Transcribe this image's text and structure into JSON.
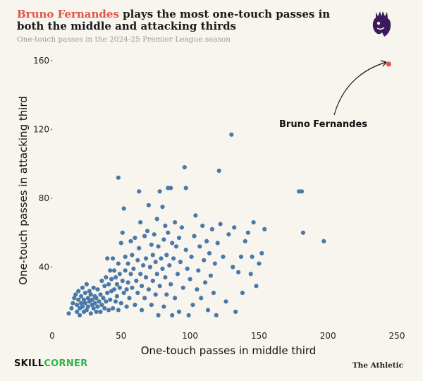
{
  "header": {
    "title_highlight": "Bruno Fernandes",
    "title_rest": " plays the most one-touch passes in both the middle and attacking thirds",
    "subtitle": "One-touch passes in the 2024-25 Premier League season"
  },
  "logo": {
    "icon": "premier-league-lion-icon",
    "color": "#3d195b"
  },
  "footer": {
    "brand_left_part1": "SKILL",
    "brand_left_part2": "CORNER",
    "brand_right": "The Athletic"
  },
  "colors": {
    "point": "#4a78a8",
    "highlight": "#e05548",
    "accent_title": "#e05548",
    "brand_green": "#2fb34a"
  },
  "chart_data": {
    "type": "scatter",
    "xlabel": "One-touch passes in middle third",
    "ylabel": "One-touch passes in attacking third",
    "xlim": [
      0,
      250
    ],
    "ylim": [
      0,
      160
    ],
    "xticks": [
      0,
      50,
      100,
      150,
      200,
      250
    ],
    "yticks": [
      40,
      80,
      120,
      160
    ],
    "grid": false,
    "highlight": {
      "name": "Bruno Fernandes",
      "x": 244,
      "y": 158
    },
    "annotation": "Bruno Fernandes",
    "points": [
      [
        12,
        13
      ],
      [
        14,
        16
      ],
      [
        15,
        19
      ],
      [
        16,
        22
      ],
      [
        17,
        24
      ],
      [
        18,
        14
      ],
      [
        18,
        18
      ],
      [
        19,
        21
      ],
      [
        19,
        26
      ],
      [
        20,
        12
      ],
      [
        20,
        16
      ],
      [
        21,
        19
      ],
      [
        21,
        23
      ],
      [
        22,
        17
      ],
      [
        22,
        28
      ],
      [
        23,
        14
      ],
      [
        23,
        21
      ],
      [
        24,
        25
      ],
      [
        24,
        19
      ],
      [
        25,
        30
      ],
      [
        25,
        15
      ],
      [
        26,
        22
      ],
      [
        26,
        17
      ],
      [
        27,
        20
      ],
      [
        27,
        26
      ],
      [
        28,
        13
      ],
      [
        28,
        24
      ],
      [
        29,
        18
      ],
      [
        29,
        21
      ],
      [
        30,
        16
      ],
      [
        30,
        28
      ],
      [
        31,
        23
      ],
      [
        31,
        19
      ],
      [
        32,
        14
      ],
      [
        32,
        22
      ],
      [
        33,
        27
      ],
      [
        33,
        17
      ],
      [
        34,
        20
      ],
      [
        35,
        24
      ],
      [
        35,
        14
      ],
      [
        36,
        32
      ],
      [
        36,
        18
      ],
      [
        37,
        22
      ],
      [
        38,
        29
      ],
      [
        38,
        16
      ],
      [
        39,
        34
      ],
      [
        39,
        20
      ],
      [
        40,
        25
      ],
      [
        40,
        45
      ],
      [
        41,
        15
      ],
      [
        41,
        30
      ],
      [
        42,
        38
      ],
      [
        42,
        21
      ],
      [
        43,
        33
      ],
      [
        43,
        26
      ],
      [
        44,
        16
      ],
      [
        44,
        45
      ],
      [
        45,
        38
      ],
      [
        45,
        27
      ],
      [
        46,
        20
      ],
      [
        46,
        34
      ],
      [
        47,
        30
      ],
      [
        47,
        23
      ],
      [
        48,
        42
      ],
      [
        48,
        15
      ],
      [
        48,
        92
      ],
      [
        49,
        36
      ],
      [
        49,
        28
      ],
      [
        50,
        19
      ],
      [
        50,
        54
      ],
      [
        51,
        60
      ],
      [
        51,
        32
      ],
      [
        52,
        74
      ],
      [
        52,
        25
      ],
      [
        53,
        46
      ],
      [
        53,
        38
      ],
      [
        54,
        27
      ],
      [
        54,
        17
      ],
      [
        55,
        42
      ],
      [
        55,
        31
      ],
      [
        56,
        22
      ],
      [
        57,
        55
      ],
      [
        57,
        36
      ],
      [
        58,
        47
      ],
      [
        58,
        28
      ],
      [
        59,
        39
      ],
      [
        60,
        18
      ],
      [
        60,
        57
      ],
      [
        61,
        32
      ],
      [
        62,
        44
      ],
      [
        62,
        25
      ],
      [
        63,
        84
      ],
      [
        63,
        51
      ],
      [
        64,
        36
      ],
      [
        64,
        66
      ],
      [
        65,
        15
      ],
      [
        65,
        29
      ],
      [
        66,
        41
      ],
      [
        67,
        58
      ],
      [
        67,
        22
      ],
      [
        68,
        45
      ],
      [
        68,
        34
      ],
      [
        69,
        61
      ],
      [
        70,
        27
      ],
      [
        70,
        76
      ],
      [
        71,
        40
      ],
      [
        72,
        53
      ],
      [
        72,
        18
      ],
      [
        73,
        32
      ],
      [
        73,
        47
      ],
      [
        74,
        59
      ],
      [
        75,
        24
      ],
      [
        75,
        43
      ],
      [
        76,
        68
      ],
      [
        76,
        36
      ],
      [
        77,
        12
      ],
      [
        77,
        52
      ],
      [
        78,
        29
      ],
      [
        78,
        84
      ],
      [
        79,
        45
      ],
      [
        80,
        39
      ],
      [
        80,
        75
      ],
      [
        81,
        17
      ],
      [
        81,
        56
      ],
      [
        82,
        34
      ],
      [
        82,
        64
      ],
      [
        83,
        47
      ],
      [
        83,
        24
      ],
      [
        84,
        86
      ],
      [
        84,
        60
      ],
      [
        85,
        41
      ],
      [
        86,
        30
      ],
      [
        86,
        86
      ],
      [
        87,
        54
      ],
      [
        87,
        12
      ],
      [
        88,
        45
      ],
      [
        89,
        66
      ],
      [
        89,
        22
      ],
      [
        90,
        52
      ],
      [
        91,
        36
      ],
      [
        92,
        57
      ],
      [
        92,
        14
      ],
      [
        93,
        43
      ],
      [
        94,
        63
      ],
      [
        95,
        28
      ],
      [
        96,
        98
      ],
      [
        97,
        86
      ],
      [
        97,
        50
      ],
      [
        98,
        39
      ],
      [
        99,
        12
      ],
      [
        100,
        33
      ],
      [
        101,
        46
      ],
      [
        102,
        18
      ],
      [
        103,
        58
      ],
      [
        104,
        70
      ],
      [
        105,
        27
      ],
      [
        106,
        38
      ],
      [
        107,
        52
      ],
      [
        108,
        22
      ],
      [
        109,
        64
      ],
      [
        110,
        44
      ],
      [
        111,
        31
      ],
      [
        112,
        55
      ],
      [
        113,
        15
      ],
      [
        114,
        48
      ],
      [
        115,
        35
      ],
      [
        116,
        62
      ],
      [
        117,
        25
      ],
      [
        118,
        42
      ],
      [
        119,
        12
      ],
      [
        120,
        54
      ],
      [
        121,
        96
      ],
      [
        122,
        65
      ],
      [
        124,
        46
      ],
      [
        126,
        20
      ],
      [
        128,
        59
      ],
      [
        130,
        117
      ],
      [
        131,
        40
      ],
      [
        132,
        63
      ],
      [
        133,
        14
      ],
      [
        135,
        37
      ],
      [
        137,
        46
      ],
      [
        138,
        25
      ],
      [
        140,
        55
      ],
      [
        142,
        60
      ],
      [
        144,
        36
      ],
      [
        145,
        46
      ],
      [
        146,
        66
      ],
      [
        148,
        29
      ],
      [
        150,
        42
      ],
      [
        152,
        48
      ],
      [
        154,
        62
      ],
      [
        179,
        84
      ],
      [
        181,
        84
      ],
      [
        182,
        60
      ],
      [
        197,
        55
      ]
    ]
  }
}
